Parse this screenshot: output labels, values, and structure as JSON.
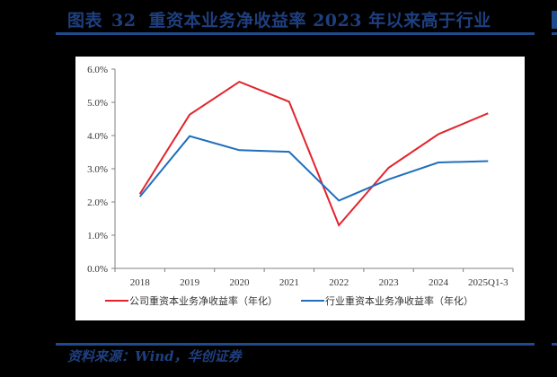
{
  "header": {
    "figure_label": "图表",
    "figure_number": "32",
    "title": "重资本业务净收益率 2023 年以来高于行业"
  },
  "footer": {
    "source": "资料来源：Wind，华创证券"
  },
  "colors": {
    "brand_blue": "#1f4b8c",
    "series_company": "#e3232c",
    "series_industry": "#1f6fbf",
    "background": "#000000",
    "panel": "#ffffff"
  },
  "chart_data": {
    "type": "line",
    "title": "重资本业务净收益率 2023 年以来高于行业",
    "xlabel": "",
    "ylabel": "",
    "categories": [
      "2018",
      "2019",
      "2020",
      "2021",
      "2022",
      "2023",
      "2024",
      "2025Q1-3"
    ],
    "series": [
      {
        "name": "公司重资本业务净收益率（年化）",
        "color": "#e3232c",
        "values": [
          2.24,
          4.63,
          5.62,
          5.02,
          1.3,
          3.03,
          4.04,
          4.67
        ]
      },
      {
        "name": "行业重资本业务净收益率（年化）",
        "color": "#1f6fbf",
        "values": [
          2.16,
          3.98,
          3.56,
          3.51,
          2.04,
          2.68,
          3.19,
          3.23
        ]
      }
    ],
    "yticks": [
      "0.0%",
      "1.0%",
      "2.0%",
      "3.0%",
      "4.0%",
      "5.0%",
      "6.0%"
    ],
    "ylim": [
      0,
      6
    ],
    "y_unit": "%",
    "grid": false,
    "legend_position": "bottom"
  }
}
